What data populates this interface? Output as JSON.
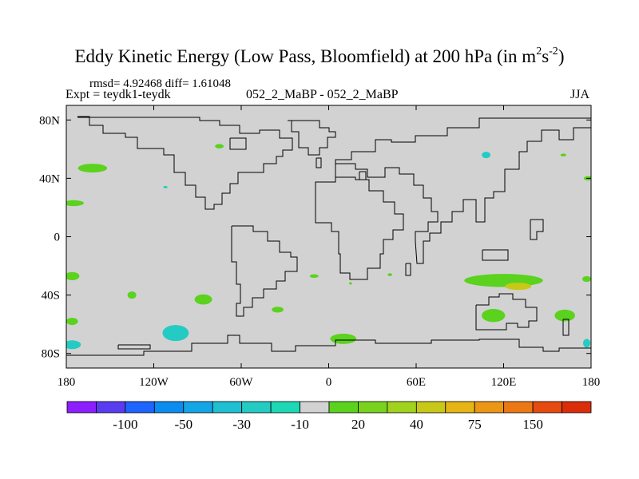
{
  "title_main": "Eddy Kinetic Energy (Low Pass, Bloomfield) at 200 hPa (in m",
  "title_sup1": "2",
  "title_mid": "s",
  "title_sup2": "-2",
  "title_end": ")",
  "stats": "rmsd= 4.92468 diff= 1.61048",
  "expt": "Expt = teydk1-teydk",
  "case_label": "052_2_MaBP - 052_2_MaBP",
  "season": "JJA",
  "chart_data": {
    "type": "heatmap",
    "subtype": "filled contour map (difference field)",
    "xlim": [
      -180,
      180
    ],
    "ylim": [
      -90,
      90
    ],
    "x_ticks": [
      {
        "value": -180,
        "label": "180"
      },
      {
        "value": -120,
        "label": "120W"
      },
      {
        "value": -60,
        "label": "60W"
      },
      {
        "value": 0,
        "label": "0"
      },
      {
        "value": 60,
        "label": "60E"
      },
      {
        "value": 120,
        "label": "120E"
      },
      {
        "value": 180,
        "label": "180"
      }
    ],
    "y_ticks": [
      {
        "value": 80,
        "label": "80N"
      },
      {
        "value": 40,
        "label": "40N"
      },
      {
        "value": 0,
        "label": "0"
      },
      {
        "value": -40,
        "label": "40S"
      },
      {
        "value": -80,
        "label": "80S"
      }
    ],
    "levels": [
      -200,
      -150,
      -100,
      -75,
      -50,
      -40,
      -30,
      -20,
      -10,
      10,
      20,
      30,
      40,
      50,
      75,
      100,
      150
    ],
    "colorbar_labels": [
      "-100",
      "-50",
      "-30",
      "-10",
      "20",
      "40",
      "75",
      "150"
    ],
    "colorbar_colors": [
      "#8c1eff",
      "#5a3cf0",
      "#1e64ff",
      "#0a8cf0",
      "#14a5e6",
      "#1ec0d2",
      "#23cbc3",
      "#1ed7b4",
      "#d2d2d2",
      "#5ad21e",
      "#78d21e",
      "#a0d21e",
      "#c8c819",
      "#e6b414",
      "#eb9614",
      "#eb7814",
      "#e64a0f",
      "#dc2d0a"
    ],
    "background_color": "#d2d2d2",
    "regions": [
      {
        "lon": -162,
        "lat": 47,
        "rx": 10,
        "ry": 3,
        "fill": "#5ad21e"
      },
      {
        "lon": -175,
        "lat": 23,
        "rx": 7,
        "ry": 2,
        "fill": "#5ad21e"
      },
      {
        "lon": -75,
        "lat": 62,
        "rx": 3,
        "ry": 1.5,
        "fill": "#5ad21e"
      },
      {
        "lon": -112,
        "lat": 34,
        "rx": 1.5,
        "ry": 0.8,
        "fill": "#23cbc3"
      },
      {
        "lon": 108,
        "lat": 56,
        "rx": 3,
        "ry": 2.2,
        "fill": "#23cbc3"
      },
      {
        "lon": 161,
        "lat": 56,
        "rx": 2,
        "ry": 1,
        "fill": "#5ad21e"
      },
      {
        "lon": 178,
        "lat": 40,
        "rx": 3,
        "ry": 1.5,
        "fill": "#5ad21e"
      },
      {
        "lon": -176,
        "lat": -27,
        "rx": 5,
        "ry": 2.8,
        "fill": "#5ad21e"
      },
      {
        "lon": -135,
        "lat": -40,
        "rx": 3,
        "ry": 2.5,
        "fill": "#5ad21e"
      },
      {
        "lon": -86,
        "lat": -43,
        "rx": 6,
        "ry": 3.5,
        "fill": "#5ad21e"
      },
      {
        "lon": -35,
        "lat": -50,
        "rx": 4,
        "ry": 2,
        "fill": "#5ad21e"
      },
      {
        "lon": -10,
        "lat": -27,
        "rx": 3,
        "ry": 1.2,
        "fill": "#5ad21e"
      },
      {
        "lon": -176,
        "lat": -58,
        "rx": 4,
        "ry": 2.5,
        "fill": "#5ad21e"
      },
      {
        "lon": -176,
        "lat": -74,
        "rx": 6,
        "ry": 3,
        "fill": "#23cbc3"
      },
      {
        "lon": -105,
        "lat": -66,
        "rx": 9,
        "ry": 5.5,
        "fill": "#23cbc3"
      },
      {
        "lon": 10,
        "lat": -70,
        "rx": 9,
        "ry": 3.5,
        "fill": "#5ad21e"
      },
      {
        "lon": 15,
        "lat": -32,
        "rx": 1,
        "ry": 0.8,
        "fill": "#5ad21e"
      },
      {
        "lon": 42,
        "lat": -26,
        "rx": 1.5,
        "ry": 1,
        "fill": "#5ad21e"
      },
      {
        "lon": 120,
        "lat": -30,
        "rx": 27,
        "ry": 4.5,
        "fill": "#5ad21e"
      },
      {
        "lon": 130,
        "lat": -34,
        "rx": 9,
        "ry": 2.5,
        "fill": "#c8c819"
      },
      {
        "lon": 113,
        "lat": -54,
        "rx": 8,
        "ry": 4.5,
        "fill": "#5ad21e"
      },
      {
        "lon": 162,
        "lat": -54,
        "rx": 7,
        "ry": 4,
        "fill": "#5ad21e"
      },
      {
        "lon": 177,
        "lat": -29,
        "rx": 3,
        "ry": 2,
        "fill": "#5ad21e"
      },
      {
        "lon": 177,
        "lat": -73,
        "rx": 2.5,
        "ry": 3,
        "fill": "#23cbc3"
      }
    ]
  }
}
